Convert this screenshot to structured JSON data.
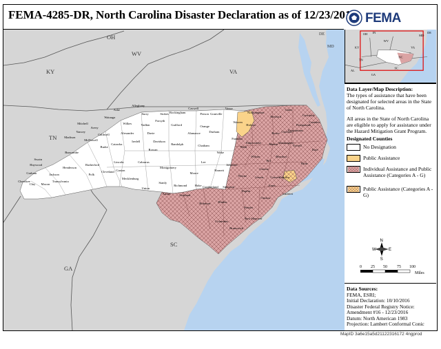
{
  "title": "FEMA-4285-DR, North Carolina Disaster Declaration as of 12/23/2016",
  "brand": "FEMA",
  "colors": {
    "land": "#d6d6d6",
    "water": "#b7d3f0",
    "no_designation": "#ffffff",
    "public_assistance": "#fad38a",
    "individual_and_public": "#dba4a4",
    "hatch": "#8a5050"
  },
  "state_labels": [
    "OH",
    "WV",
    "KY",
    "VA",
    "TN",
    "NC",
    "SC",
    "GA"
  ],
  "inset": {
    "labels": [
      "OH",
      "IN",
      "MD",
      "DE",
      "WV",
      "KY",
      "VA",
      "TN",
      "NC",
      "SC",
      "AL",
      "GA"
    ]
  },
  "description": {
    "heading": "Data Layer/Map Description:",
    "text": "The types of assistance that have been designated for selected areas in the State of North Carolina.",
    "mitigation": "All areas in the State of North Carolina are eligible to apply for assistance under the Hazard Mitigation Grant Program."
  },
  "legend": {
    "heading": "Designated Counties",
    "items": [
      {
        "label": "No Designation",
        "key": "none"
      },
      {
        "label": "Public Assistance",
        "key": "pa"
      },
      {
        "label": "Individual Assistance and Public Assistance (Categories A - G)",
        "key": "ia"
      },
      {
        "label": "Public Assistance (Categories A - G)",
        "key": "pa_ag"
      }
    ]
  },
  "compass": {
    "n": "N",
    "s": "S",
    "e": "E",
    "w": "W"
  },
  "scale": {
    "ticks": [
      "0",
      "25",
      "50",
      "75",
      "100"
    ],
    "unit": "Miles"
  },
  "sources": {
    "heading": "Data Sources:",
    "lines": [
      "FEMA, ESRI;",
      "Initial Declaration: 10/10/2016",
      "Disaster Federal Registry Notice:",
      "Amendment #16 - 12/23/2016",
      "Datum: North American 1983",
      "Projection: Lambert Conformal Conic"
    ]
  },
  "map_id": "MapID 3a6e15a5d21122316172 4ngprod",
  "counties_white": [
    "Alleghany",
    "Ashe",
    "Watauga",
    "Surry",
    "Stokes",
    "Rockingham",
    "Caswell",
    "Person",
    "Granville",
    "Vance",
    "Mitchell",
    "Avery",
    "Wilkes",
    "Yadkin",
    "Forsyth",
    "Guilford",
    "Alamance",
    "Orange",
    "Durham",
    "Yancey",
    "Caldwell",
    "Alexander",
    "Davie",
    "Davidson",
    "Randolph",
    "Chatham",
    "Madison",
    "Buncombe",
    "McDowell",
    "Burke",
    "Catawba",
    "Iredell",
    "Rowan",
    "Haywood",
    "Swain",
    "Graham",
    "Cherokee",
    "Clay",
    "Macon",
    "Jackson",
    "Transylvania",
    "Henderson",
    "Polk",
    "Rutherford",
    "Cleveland",
    "Gaston",
    "Lincoln",
    "Mecklenburg",
    "Cabarrus",
    "Stanly",
    "Union",
    "Montgomery"
  ],
  "counties_pa": [
    "Warren",
    "Pamlico"
  ],
  "counties_ia": [
    "Franklin",
    "Halifax",
    "Northampton",
    "Hertford",
    "Gates",
    "Currituck",
    "Camden",
    "Pasquotank",
    "Perquimans",
    "Chowan",
    "Bertie",
    "Washington",
    "Tyrrell",
    "Dare",
    "Hyde",
    "Martin",
    "Edgecombe",
    "Nash",
    "Wilson",
    "Pitt",
    "Beaufort",
    "Wake",
    "Johnston",
    "Greene",
    "Craven",
    "Lenoir",
    "Wayne",
    "Harnett",
    "Lee",
    "Moore",
    "Richmond",
    "Anson",
    "Scotland",
    "Hoke",
    "Cumberland",
    "Sampson",
    "Duplin",
    "Jones",
    "Onslow",
    "Carteret",
    "Pender",
    "Bladen",
    "Robeson",
    "Columbus",
    "Brunswick",
    "New Hanover"
  ],
  "counties_labeled_extra": [
    "Vance",
    "Wilkes",
    "Alexander"
  ]
}
